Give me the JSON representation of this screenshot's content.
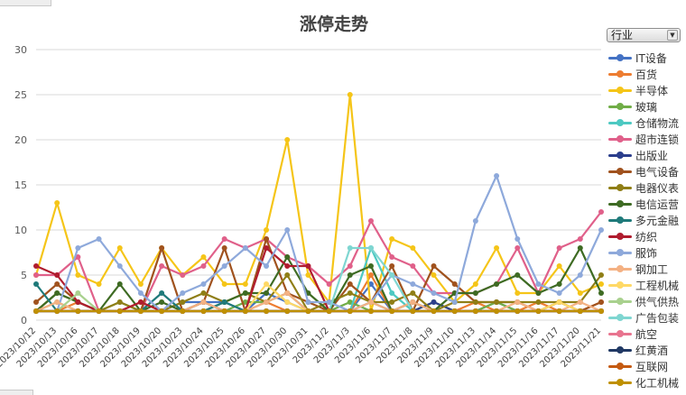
{
  "chart_data": {
    "type": "line",
    "title": "涨停走势",
    "xlabel": "",
    "ylabel": "",
    "ylim": [
      0,
      30
    ],
    "yticks": [
      "0",
      "5",
      "10",
      "15",
      "20",
      "25",
      "30"
    ],
    "grid": "horizontal",
    "legend_position": "right",
    "categories": [
      "2023/10/12",
      "2023/10/13",
      "2023/10/16",
      "2023/10/17",
      "2023/10/18",
      "2023/10/19",
      "2023/10/20",
      "2023/10/23",
      "2023/10/24",
      "2023/10/25",
      "2023/10/26",
      "2023/10/27",
      "2023/10/30",
      "2023/10/31",
      "2023/11/2",
      "2023/11/3",
      "2023/11/6",
      "2023/11/7",
      "2023/11/8",
      "2023/11/9",
      "2023/11/10",
      "2023/11/13",
      "2023/11/14",
      "2023/11/15",
      "2023/11/16",
      "2023/11/17",
      "2023/11/20",
      "2023/11/21"
    ],
    "series": [
      {
        "name": "IT设备",
        "color": "#4472c4",
        "values": [
          1,
          1,
          1,
          1,
          1,
          1,
          1,
          2,
          2,
          2,
          1,
          3,
          2,
          1,
          1,
          1,
          4,
          1,
          1,
          1,
          1,
          1,
          2,
          1,
          1,
          1,
          1,
          1
        ]
      },
      {
        "name": "百货",
        "color": "#ed7d31",
        "values": [
          1,
          1,
          2,
          1,
          1,
          2,
          1,
          1,
          2,
          1,
          1,
          2,
          1,
          1,
          1,
          1,
          5,
          1,
          2,
          1,
          1,
          2,
          1,
          1,
          2,
          1,
          1,
          2
        ]
      },
      {
        "name": "半导体",
        "color": "#f5c518",
        "values": [
          5,
          13,
          5,
          4,
          8,
          4,
          8,
          5,
          7,
          4,
          4,
          10,
          20,
          5,
          2,
          25,
          1,
          9,
          8,
          5,
          2,
          4,
          8,
          3,
          3,
          6,
          3,
          4
        ]
      },
      {
        "name": "玻璃",
        "color": "#70ad47",
        "values": [
          1,
          2,
          1,
          1,
          2,
          1,
          1,
          1,
          2,
          1,
          2,
          2,
          3,
          1,
          1,
          2,
          1,
          1,
          1,
          2,
          1,
          1,
          2,
          1,
          1,
          2,
          1,
          1
        ]
      },
      {
        "name": "仓储物流",
        "color": "#4dc9c2",
        "values": [
          1,
          1,
          1,
          1,
          1,
          1,
          1,
          1,
          1,
          1,
          1,
          1,
          1,
          1,
          1,
          1,
          8,
          3,
          1,
          1,
          1,
          1,
          1,
          1,
          1,
          1,
          1,
          1
        ]
      },
      {
        "name": "超市连锁",
        "color": "#e0608a",
        "values": [
          5,
          5,
          7,
          1,
          1,
          1,
          6,
          5,
          6,
          9,
          8,
          9,
          7,
          6,
          4,
          6,
          11,
          7,
          6,
          3,
          3,
          3,
          4,
          8,
          3,
          8,
          9,
          12
        ]
      },
      {
        "name": "出版业",
        "color": "#2b3e8c",
        "values": [
          1,
          1,
          1,
          1,
          1,
          1,
          1,
          1,
          2,
          1,
          1,
          1,
          1,
          1,
          1,
          1,
          1,
          1,
          1,
          2,
          1,
          1,
          1,
          1,
          1,
          1,
          1,
          1
        ]
      },
      {
        "name": "电气设备",
        "color": "#a0521e",
        "values": [
          2,
          4,
          2,
          1,
          1,
          1,
          8,
          1,
          2,
          8,
          1,
          9,
          3,
          2,
          1,
          4,
          2,
          6,
          1,
          6,
          4,
          2,
          2,
          2,
          1,
          2,
          1,
          2
        ]
      },
      {
        "name": "电器仪表",
        "color": "#8f7e16",
        "values": [
          1,
          3,
          2,
          1,
          2,
          1,
          1,
          2,
          3,
          2,
          3,
          2,
          5,
          1,
          2,
          3,
          2,
          2,
          3,
          1,
          2,
          2,
          2,
          2,
          2,
          2,
          2,
          5
        ]
      },
      {
        "name": "电信运营",
        "color": "#3e6b23",
        "values": [
          1,
          3,
          2,
          1,
          4,
          1,
          2,
          1,
          1,
          2,
          3,
          3,
          7,
          3,
          1,
          5,
          6,
          1,
          2,
          1,
          3,
          3,
          4,
          5,
          3,
          4,
          8,
          3
        ]
      },
      {
        "name": "多元金融",
        "color": "#1f7a7a",
        "values": [
          4,
          1,
          1,
          1,
          1,
          1,
          3,
          1,
          1,
          2,
          1,
          1,
          1,
          1,
          1,
          1,
          2,
          1,
          1,
          1,
          1,
          1,
          1,
          1,
          1,
          1,
          1,
          1
        ]
      },
      {
        "name": "纺织",
        "color": "#b01c2e",
        "values": [
          6,
          5,
          2,
          1,
          1,
          2,
          1,
          1,
          1,
          1,
          1,
          8,
          6,
          6,
          1,
          1,
          1,
          1,
          1,
          1,
          1,
          1,
          1,
          1,
          1,
          1,
          1,
          1
        ]
      },
      {
        "name": "服饰",
        "color": "#8ea9db",
        "values": [
          1,
          1,
          8,
          9,
          6,
          3,
          1,
          3,
          4,
          6,
          8,
          6,
          10,
          2,
          2,
          1,
          2,
          5,
          4,
          3,
          2,
          11,
          16,
          9,
          4,
          3,
          5,
          10
        ]
      },
      {
        "name": "钢加工",
        "color": "#f4b183",
        "values": [
          1,
          2,
          1,
          1,
          1,
          1,
          1,
          1,
          2,
          1,
          1,
          2,
          3,
          1,
          1,
          1,
          2,
          1,
          2,
          1,
          1,
          1,
          1,
          2,
          1,
          1,
          2,
          1
        ]
      },
      {
        "name": "工程机械",
        "color": "#ffd966",
        "values": [
          1,
          1,
          1,
          1,
          1,
          1,
          1,
          1,
          1,
          1,
          1,
          4,
          2,
          1,
          1,
          1,
          1,
          1,
          1,
          1,
          1,
          1,
          1,
          1,
          1,
          2,
          1,
          1
        ]
      },
      {
        "name": "供气供热",
        "color": "#a9d18e",
        "values": [
          1,
          1,
          3,
          1,
          1,
          1,
          1,
          1,
          1,
          1,
          1,
          1,
          1,
          1,
          1,
          1,
          1,
          1,
          1,
          1,
          1,
          1,
          1,
          1,
          1,
          1,
          1,
          1
        ]
      },
      {
        "name": "广告包装",
        "color": "#7fd6d1",
        "values": [
          1,
          1,
          1,
          1,
          1,
          1,
          1,
          1,
          1,
          1,
          1,
          1,
          1,
          1,
          1,
          8,
          8,
          5,
          1,
          1,
          1,
          1,
          1,
          1,
          1,
          1,
          1,
          1
        ]
      },
      {
        "name": "航空",
        "color": "#e8748f",
        "values": [
          1,
          1,
          1,
          1,
          1,
          1,
          1,
          1,
          1,
          1,
          1,
          1,
          1,
          1,
          1,
          1,
          1,
          1,
          1,
          1,
          1,
          1,
          1,
          1,
          1,
          1,
          1,
          1
        ]
      },
      {
        "name": "红黄酒",
        "color": "#203864",
        "values": [
          1,
          1,
          1,
          1,
          1,
          1,
          1,
          1,
          1,
          1,
          1,
          1,
          1,
          1,
          1,
          1,
          1,
          1,
          1,
          1,
          1,
          1,
          1,
          1,
          1,
          1,
          1,
          1
        ]
      },
      {
        "name": "互联网",
        "color": "#c55a11",
        "values": [
          1,
          1,
          1,
          1,
          1,
          1,
          1,
          1,
          1,
          1,
          1,
          1,
          1,
          1,
          1,
          1,
          1,
          1,
          1,
          1,
          1,
          1,
          1,
          1,
          1,
          1,
          1,
          1
        ]
      },
      {
        "name": "化工机械",
        "color": "#bf9000",
        "values": [
          1,
          1,
          1,
          1,
          1,
          1,
          1,
          1,
          1,
          1,
          1,
          1,
          1,
          1,
          1,
          1,
          1,
          1,
          1,
          1,
          1,
          1,
          1,
          1,
          1,
          1,
          1,
          1
        ]
      }
    ]
  },
  "filter": {
    "label": "行业"
  }
}
